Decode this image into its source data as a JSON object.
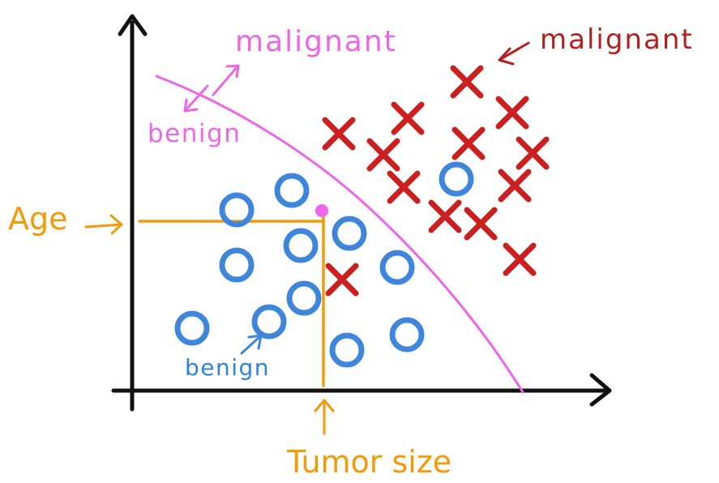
{
  "labels": {
    "x_axis": "Tumor size",
    "y_axis": "Age",
    "malignant_region": "malignant",
    "benign_region": "benign",
    "malignant_class": "malignant",
    "benign_class": "benign"
  },
  "colors": {
    "axis": "#111111",
    "benign_marker": "#3d86db",
    "malignant_marker": "#cc1f1f",
    "boundary": "#ee66e8",
    "guide": "#f29a0a",
    "benign_text": "#2f83da",
    "malignant_text": "#b51f1f"
  },
  "legend": {
    "benign_symbol": "circle-marker",
    "malignant_symbol": "cross-marker",
    "new_point_symbol": "filled-dot"
  }
}
